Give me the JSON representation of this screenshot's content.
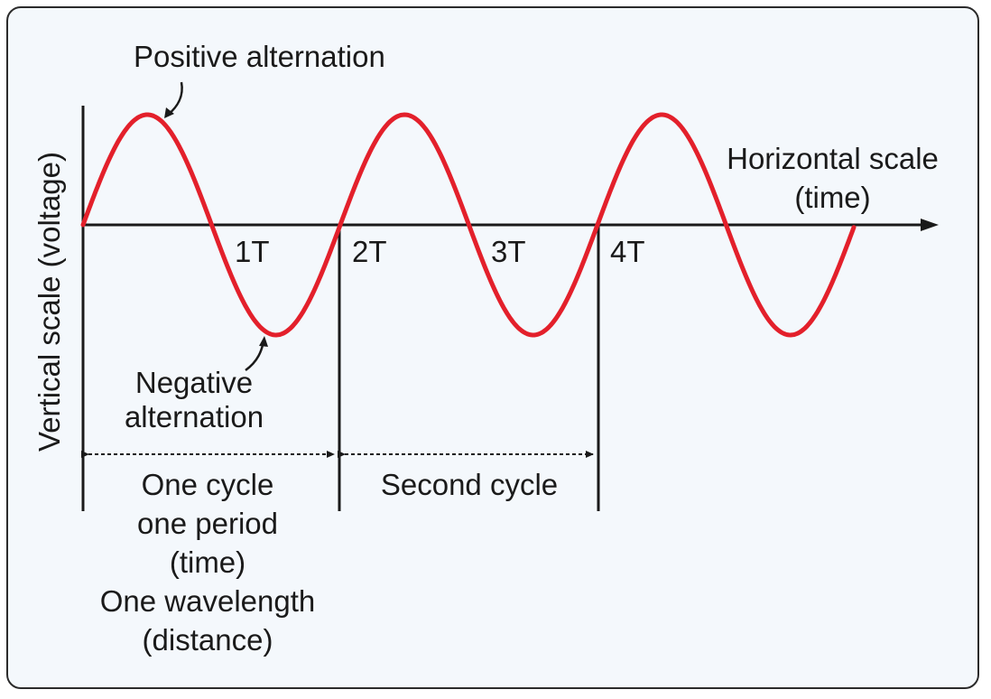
{
  "labels": {
    "positive": "Positive alternation",
    "negative_line1": "Negative",
    "negative_line2": "alternation",
    "horizontal_line1": "Horizontal scale",
    "horizontal_line2": "(time)",
    "vertical": "Vertical scale (voltage)",
    "period_1": "1T",
    "period_2": "2T",
    "period_3": "3T",
    "period_4": "4T",
    "cycle1_line1": "One cycle",
    "cycle1_line2": "one period",
    "cycle1_line3": "(time)",
    "cycle1_line4": "One wavelength",
    "cycle1_line5": "(distance)",
    "cycle2": "Second cycle"
  },
  "colors": {
    "wave": "#e3202b",
    "axis": "#1a1a1a",
    "background": "#f4f8fc"
  }
}
